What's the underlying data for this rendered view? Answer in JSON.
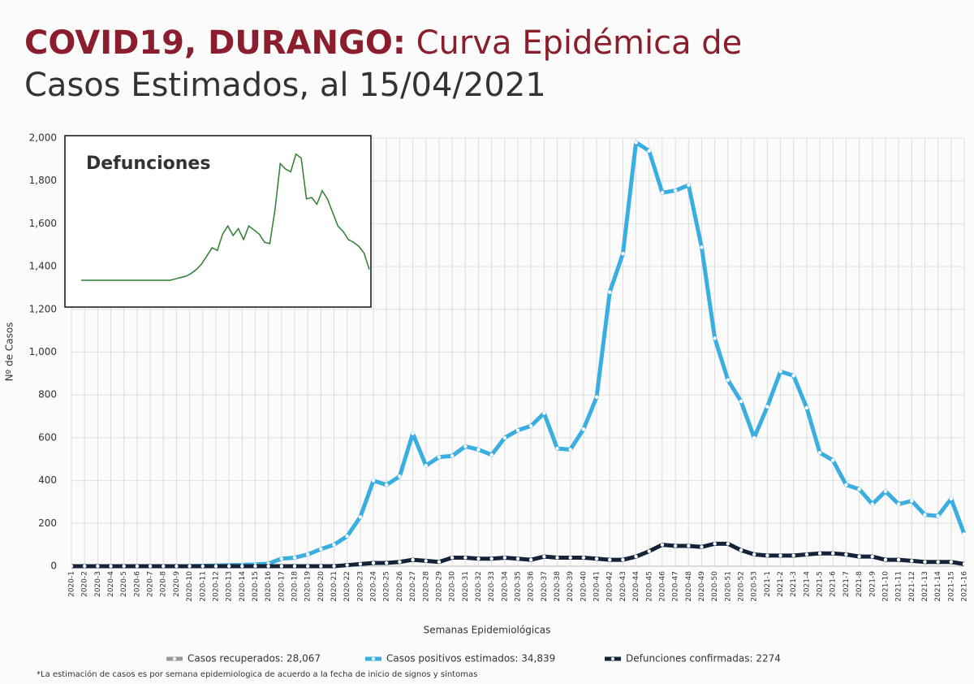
{
  "chart_data": [
    {
      "type": "line",
      "title_bold": "COVID19, DURANGO:",
      "title_line1": "Curva Epidémica de",
      "title_line2": "Casos Estimados, al 15/04/2021",
      "ylabel": "Nº de Casos",
      "xlabel": "Semanas Epidemiológicas",
      "footnote": "*La estimación de casos es por semana epidemiologica de acuerdo a la fecha de inicio de signos y síntomas",
      "categories": [
        "2020-1",
        "2020-2",
        "2020-3",
        "2020-4",
        "2020-5",
        "2020-6",
        "2020-7",
        "2020-8",
        "2020-9",
        "2020-10",
        "2020-11",
        "2020-12",
        "2020-13",
        "2020-14",
        "2020-15",
        "2020-16",
        "2020-17",
        "2020-18",
        "2020-19",
        "2020-20",
        "2020-21",
        "2020-22",
        "2020-23",
        "2020-24",
        "2020-25",
        "2020-26",
        "2020-27",
        "2020-28",
        "2020-29",
        "2020-30",
        "2020-31",
        "2020-32",
        "2020-33",
        "2020-34",
        "2020-35",
        "2020-36",
        "2020-37",
        "2020-38",
        "2020-39",
        "2020-40",
        "2020-41",
        "2020-42",
        "2020-43",
        "2020-44",
        "2020-45",
        "2020-46",
        "2020-47",
        "2020-48",
        "2020-49",
        "2020-50",
        "2020-51",
        "2020-52",
        "2020-53",
        "2021-1",
        "2021-2",
        "2021-3",
        "2021-4",
        "2021-5",
        "2021-6",
        "2021-7",
        "2021-8",
        "2021-9",
        "2021-10",
        "2021-11",
        "2021-12",
        "2021-13",
        "2021-14",
        "2021-15",
        "2021-16"
      ],
      "series": [
        {
          "name": "Casos recuperados: 28,067",
          "color": "#9a9a9a"
        },
        {
          "name": "Casos positivos estimados: 34,839",
          "color": "#3aaee0",
          "values": [
            0,
            0,
            0,
            0,
            0,
            0,
            0,
            0,
            0,
            0,
            2,
            3,
            5,
            6,
            8,
            12,
            35,
            40,
            55,
            80,
            100,
            140,
            230,
            400,
            380,
            420,
            620,
            470,
            510,
            515,
            560,
            545,
            520,
            600,
            635,
            655,
            715,
            550,
            545,
            640,
            790,
            1280,
            1460,
            1980,
            1940,
            1745,
            1755,
            1780,
            1490,
            1065,
            870,
            770,
            600,
            745,
            910,
            890,
            740,
            530,
            495,
            380,
            360,
            290,
            350,
            290,
            305,
            240,
            235,
            315,
            150
          ]
        },
        {
          "name": "Defunciones confirmadas: 2274",
          "color": "#14233a",
          "values": [
            0,
            0,
            0,
            0,
            0,
            0,
            0,
            0,
            0,
            0,
            0,
            0,
            0,
            0,
            0,
            0,
            0,
            0,
            0,
            0,
            0,
            5,
            10,
            15,
            15,
            20,
            30,
            25,
            20,
            40,
            40,
            35,
            35,
            40,
            35,
            30,
            45,
            40,
            40,
            40,
            35,
            30,
            30,
            45,
            70,
            100,
            95,
            95,
            90,
            105,
            105,
            75,
            55,
            50,
            50,
            50,
            55,
            60,
            60,
            55,
            45,
            45,
            30,
            30,
            25,
            20,
            20,
            20,
            10
          ]
        }
      ],
      "ylim": [
        0,
        2000
      ],
      "yticks": [
        0,
        {
          "value": 200,
          "label": "200"
        },
        {
          "value": 400,
          "label": "400"
        },
        {
          "value": 600,
          "label": "600"
        },
        {
          "value": 800,
          "label": "800"
        },
        {
          "value": 1000,
          "label": "1,000"
        },
        {
          "value": 1200,
          "label": "1,200"
        },
        {
          "value": 1400,
          "label": "1,400"
        },
        {
          "value": 1600,
          "label": "1,600"
        },
        {
          "value": 1800,
          "label": "1,800"
        },
        {
          "value": 2000,
          "label": "2,000"
        }
      ],
      "grid": true
    },
    {
      "type": "line",
      "title": "Defunciones",
      "color": "#2e7d32",
      "values": [
        0,
        0,
        0,
        0,
        0,
        0,
        0,
        0,
        0,
        0,
        0,
        0,
        0,
        0,
        0,
        0,
        0,
        0,
        1,
        2,
        3,
        5,
        8,
        12,
        18,
        24,
        22,
        34,
        40,
        33,
        38,
        30,
        40,
        37,
        34,
        28,
        27,
        52,
        86,
        82,
        80,
        93,
        90,
        60,
        61,
        56,
        66,
        60,
        50,
        40,
        36,
        30,
        28,
        25,
        20,
        8
      ],
      "ylim": [
        0,
        100
      ]
    }
  ]
}
